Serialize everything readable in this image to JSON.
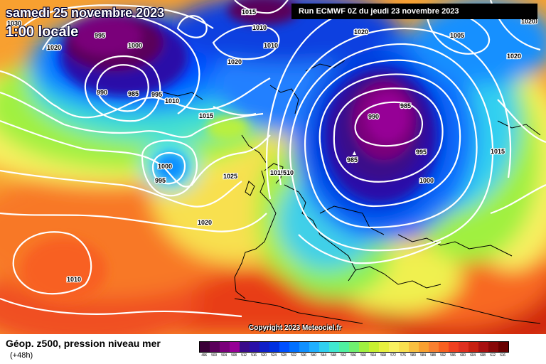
{
  "title": {
    "date": "samedi 25 novembre 2023",
    "time": "1:00 locale"
  },
  "run_info": "Run ECMWF 0Z du jeudi 23 novembre 2023",
  "copyright": "Copyright 2023 Meteociel.fr",
  "footer": {
    "title": "Géop. z500, pression niveau mer",
    "subtitle": "(+48h)"
  },
  "scale": {
    "labels": [
      "496",
      "500",
      "504",
      "508",
      "512",
      "516",
      "520",
      "524",
      "528",
      "532",
      "536",
      "540",
      "544",
      "548",
      "552",
      "556",
      "560",
      "564",
      "568",
      "572",
      "576",
      "580",
      "584",
      "588",
      "592",
      "596",
      "600",
      "604",
      "608",
      "612",
      "616"
    ],
    "colors": [
      "#3a0038",
      "#5a005a",
      "#7a007a",
      "#960096",
      "#3a0a8a",
      "#2a10a8",
      "#1020c8",
      "#0030e0",
      "#0050ff",
      "#0070ff",
      "#1090ff",
      "#20b0ff",
      "#30d0f0",
      "#40e8d0",
      "#50f0a0",
      "#70f070",
      "#a0f040",
      "#c8f030",
      "#e8f040",
      "#f8f060",
      "#f8e050",
      "#f8c040",
      "#f8a030",
      "#f88030",
      "#f86020",
      "#f04020",
      "#e03020",
      "#c82010",
      "#a81010",
      "#880808",
      "#680000"
    ]
  },
  "isobars": [
    {
      "label": "1015",
      "key": "i1"
    },
    {
      "label": "995",
      "key": "i2"
    },
    {
      "label": "1000",
      "key": "i3"
    },
    {
      "label": "1020",
      "key": "i4"
    },
    {
      "label": "1010",
      "key": "i5"
    },
    {
      "label": "1010",
      "key": "i6"
    },
    {
      "label": "1020",
      "key": "i7"
    },
    {
      "label": "1005",
      "key": "i8"
    },
    {
      "label": "1020",
      "key": "i9"
    },
    {
      "label": "1020",
      "key": "i10"
    },
    {
      "label": "990",
      "key": "i11"
    },
    {
      "label": "985",
      "key": "i12"
    },
    {
      "label": "995",
      "key": "i13"
    },
    {
      "label": "1010",
      "key": "i14"
    },
    {
      "label": "1020",
      "key": "i15"
    },
    {
      "label": "1015",
      "key": "i16"
    },
    {
      "label": "990",
      "key": "i17"
    },
    {
      "label": "985",
      "key": "i18"
    },
    {
      "label": "995",
      "key": "i19"
    },
    {
      "label": "985",
      "key": "i20"
    },
    {
      "label": "1015",
      "key": "i21"
    },
    {
      "label": "1000",
      "key": "i22"
    },
    {
      "label": "995",
      "key": "i23"
    },
    {
      "label": "1025",
      "key": "i24"
    },
    {
      "label": "1015",
      "key": "i25"
    },
    {
      "label": "510",
      "key": "i26"
    },
    {
      "label": "1000",
      "key": "i27"
    },
    {
      "label": "1020",
      "key": "i28"
    },
    {
      "label": "1010",
      "key": "i29"
    },
    {
      "label": "1030",
      "key": "i30"
    },
    {
      "label": "1020",
      "key": "i31"
    }
  ]
}
